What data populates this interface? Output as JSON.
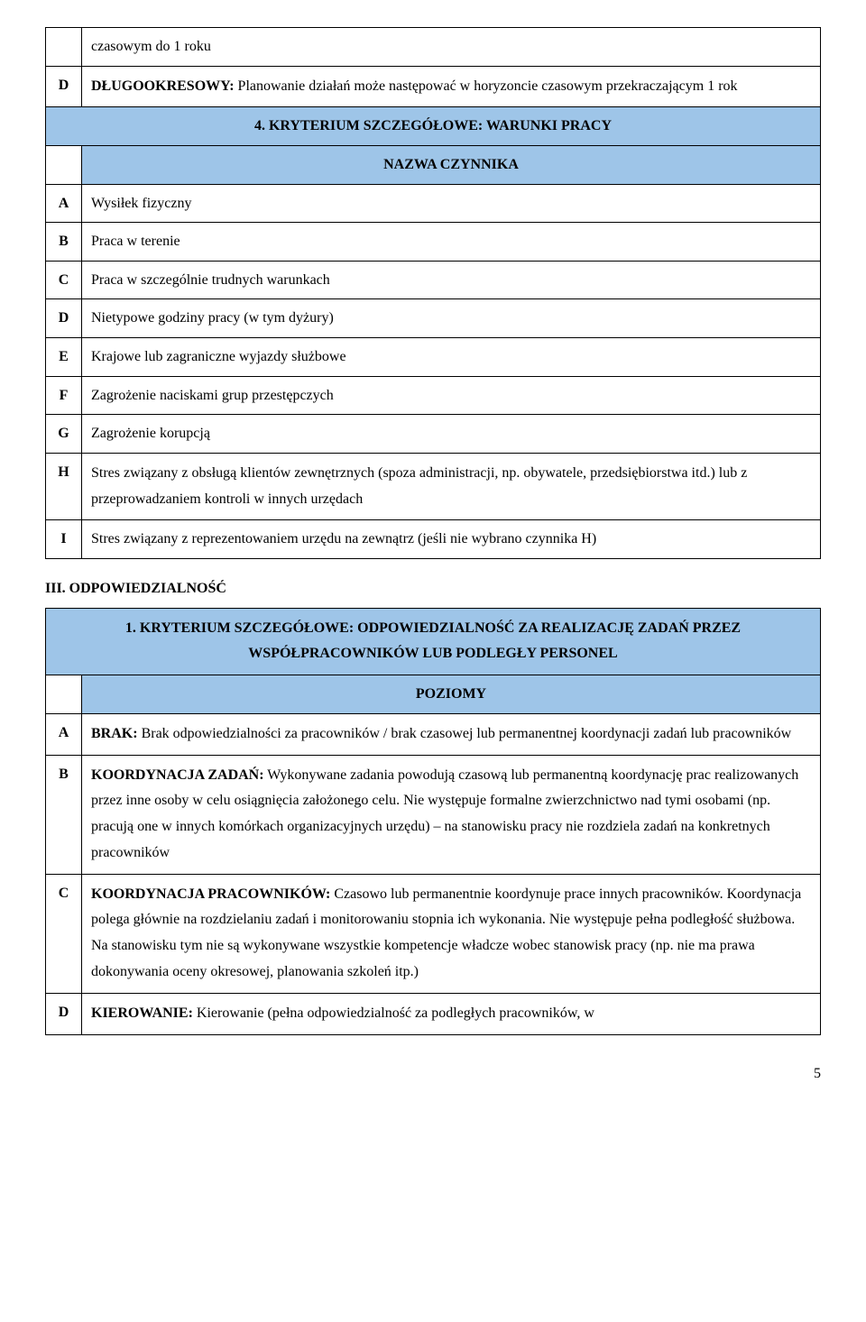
{
  "colors": {
    "header_bg": "#9ec5e8",
    "border": "#000000",
    "text": "#000000",
    "bg": "#ffffff"
  },
  "table1": {
    "row_intro": "czasowym do 1 roku",
    "row_D_label": "D",
    "row_D_text": "DŁUGOOKRESOWY: Planowanie działań może następować w horyzoncie czasowym przekraczającym 1 rok",
    "row_D_bold": "DŁUGOOKRESOWY:",
    "row_D_rest": " Planowanie działań może następować w horyzoncie czasowym przekraczającym 1 rok",
    "header1": "4. KRYTERIUM SZCZEGÓŁOWE: WARUNKI PRACY",
    "header2": "NAZWA CZYNNIKA",
    "rows": [
      {
        "label": "A",
        "text": "Wysiłek fizyczny"
      },
      {
        "label": "B",
        "text": "Praca w terenie"
      },
      {
        "label": "C",
        "text": "Praca w szczególnie trudnych warunkach"
      },
      {
        "label": "D",
        "text": "Nietypowe godziny pracy (w tym dyżury)"
      },
      {
        "label": "E",
        "text": "Krajowe lub zagraniczne wyjazdy służbowe"
      },
      {
        "label": "F",
        "text": "Zagrożenie naciskami grup przestępczych"
      },
      {
        "label": "G",
        "text": "Zagrożenie korupcją"
      },
      {
        "label": "H",
        "text": "Stres związany z obsługą klientów zewnętrznych (spoza administracji, np. obywatele, przedsiębiorstwa itd.) lub z przeprowadzaniem kontroli w innych urzędach"
      },
      {
        "label": "I",
        "text": "Stres związany z reprezentowaniem urzędu na zewnątrz (jeśli nie wybrano czynnika H)"
      }
    ]
  },
  "section_title": "III. ODPOWIEDZIALNOŚĆ",
  "table2": {
    "header1_line1": "1. KRYTERIUM SZCZEGÓŁOWE: ODPOWIEDZIALNOŚĆ ZA REALIZACJĘ ZADAŃ PRZEZ",
    "header1_line2": "WSPÓŁPRACOWNIKÓW LUB PODLEGŁY PERSONEL",
    "header2": "POZIOMY",
    "rows": [
      {
        "label": "A",
        "bold": "BRAK:",
        "rest": " Brak odpowiedzialności za pracowników / brak czasowej lub permanentnej koordynacji zadań lub pracowników"
      },
      {
        "label": "B",
        "bold": "KOORDYNACJA ZADAŃ:",
        "rest": " Wykonywane zadania powodują czasową lub permanentną koordynację prac realizowanych przez inne osoby w celu osiągnięcia założonego celu. Nie występuje formalne zwierzchnictwo nad tymi osobami (np. pracują one w innych komórkach organizacyjnych urzędu) – na stanowisku pracy nie rozdziela zadań na konkretnych pracowników"
      },
      {
        "label": "C",
        "bold": "KOORDYNACJA PRACOWNIKÓW:",
        "rest": " Czasowo lub permanentnie koordynuje prace innych pracowników. Koordynacja polega głównie na rozdzielaniu zadań i monitorowaniu stopnia ich wykonania. Nie występuje pełna podległość służbowa. Na stanowisku tym nie są wykonywane wszystkie kompetencje władcze wobec stanowisk pracy (np. nie ma prawa dokonywania oceny okresowej, planowania szkoleń itp.)"
      },
      {
        "label": "D",
        "bold": "KIEROWANIE:",
        "rest": " Kierowanie (pełna odpowiedzialność za podległych pracowników, w"
      }
    ]
  },
  "page_number": "5"
}
